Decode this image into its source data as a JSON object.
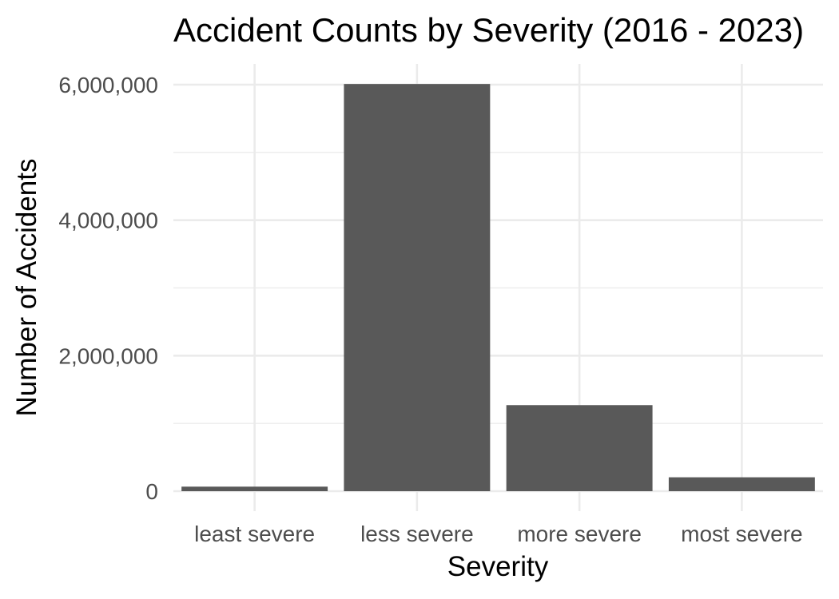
{
  "chart_data": {
    "type": "bar",
    "title": "Accident Counts by Severity (2016 - 2023)",
    "xlabel": "Severity",
    "ylabel": "Number of Accidents",
    "categories": [
      "least severe",
      "less severe",
      "more severe",
      "most severe"
    ],
    "values": [
      67000,
      6010000,
      1270000,
      205000
    ],
    "ylim": [
      0,
      6300000
    ],
    "yticks": [
      0,
      2000000,
      4000000,
      6000000
    ],
    "ytick_labels": [
      "0",
      "2,000,000",
      "4,000,000",
      "6,000,000"
    ],
    "grid": true,
    "legend": "none",
    "bar_color": "#595959",
    "gridline_color": "#ebebeb"
  }
}
